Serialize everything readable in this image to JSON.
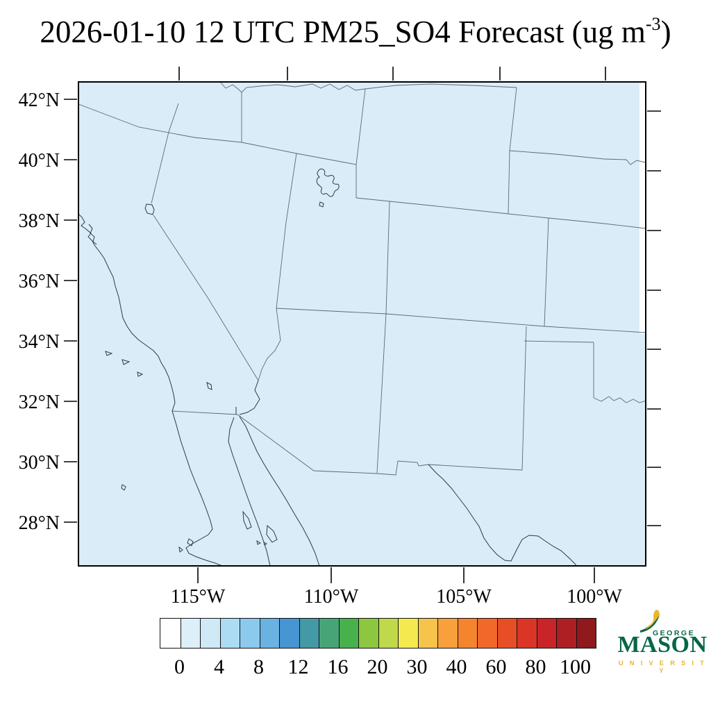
{
  "title": {
    "prefix": "2026-01-10 12 UTC PM25_SO4 Forecast (ug m",
    "superscript": "-3",
    "suffix": ")"
  },
  "axes": {
    "lat_labels": [
      "42°N",
      "40°N",
      "38°N",
      "36°N",
      "34°N",
      "32°N",
      "30°N",
      "28°N"
    ],
    "lon_labels": [
      "115°W",
      "110°W",
      "105°W",
      "100°W"
    ]
  },
  "map": {
    "fill": "#d9ecf8",
    "border_color": "#5a6a74",
    "coast_color": "#2e3a42",
    "frame_color": "#000000"
  },
  "colorbar": {
    "labels": [
      "0",
      "4",
      "8",
      "12",
      "16",
      "20",
      "30",
      "40",
      "60",
      "80",
      "100"
    ],
    "colors": [
      "#ffffff",
      "#ddeff9",
      "#cfe9f7",
      "#abdcf4",
      "#8ccaed",
      "#69b2e1",
      "#4795d3",
      "#4499a6",
      "#47a477",
      "#48b14c",
      "#8dc63f",
      "#c0d94b",
      "#f4ea4f",
      "#f6c44a",
      "#f7a03c",
      "#f5842f",
      "#f1682a",
      "#e84e26",
      "#da3527",
      "#c92428",
      "#ad1f23",
      "#8f191c"
    ]
  },
  "logo": {
    "line1": "GEORGE",
    "line2": "MASON",
    "line3": "U N I V E R S I T Y",
    "green": "#086648",
    "gold": "#e9b62f"
  }
}
